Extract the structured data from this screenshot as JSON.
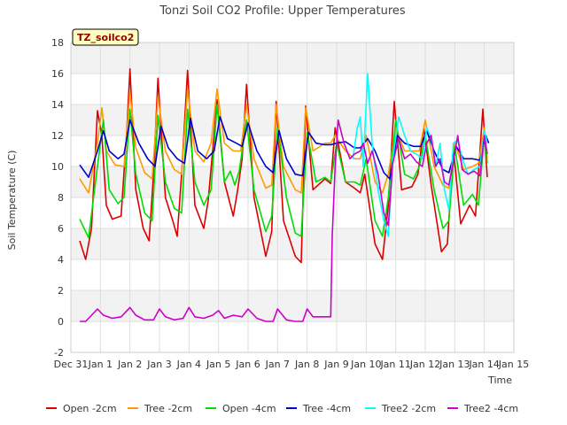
{
  "chart_data": {
    "type": "line",
    "title": "Tonzi Soil CO2 Profile: Upper Temperatures",
    "xlabel": "Time",
    "ylabel": "Soil Temperature (C)",
    "tag": "TZ_soilco2",
    "ylim": [
      -2,
      18
    ],
    "xlim": [
      0,
      15
    ],
    "yticks": [
      -2,
      0,
      2,
      4,
      6,
      8,
      10,
      12,
      14,
      16,
      18
    ],
    "xticks": [
      {
        "value": 0,
        "label": "Dec 31"
      },
      {
        "value": 1,
        "label": "Jan 1"
      },
      {
        "value": 2,
        "label": "Jan 2"
      },
      {
        "value": 3,
        "label": "Jan 3"
      },
      {
        "value": 4,
        "label": "Jan 4"
      },
      {
        "value": 5,
        "label": "Jan 5"
      },
      {
        "value": 6,
        "label": "Jan 6"
      },
      {
        "value": 7,
        "label": "Jan 7"
      },
      {
        "value": 8,
        "label": "Jan 8"
      },
      {
        "value": 9,
        "label": "Jan 9"
      },
      {
        "value": 10,
        "label": "Jan 10"
      },
      {
        "value": 11,
        "label": "Jan 11"
      },
      {
        "value": 12,
        "label": "Jan 12"
      },
      {
        "value": 13,
        "label": "Jan 13"
      },
      {
        "value": 14,
        "label": "Jan 14"
      },
      {
        "value": 15,
        "label": "Jan 15"
      }
    ],
    "grid": true,
    "legend_position": "bottom",
    "series": [
      {
        "name": "Open -2cm",
        "color": "#dd0000",
        "x": [
          0.3,
          0.5,
          0.7,
          0.9,
          1.05,
          1.2,
          1.4,
          1.7,
          1.9,
          2.0,
          2.2,
          2.45,
          2.65,
          2.8,
          2.95,
          3.2,
          3.45,
          3.6,
          3.75,
          3.95,
          4.2,
          4.5,
          4.65,
          4.8,
          4.95,
          5.2,
          5.5,
          5.65,
          5.8,
          5.95,
          6.2,
          6.6,
          6.8,
          6.95,
          7.2,
          7.6,
          7.8,
          7.95,
          8.2,
          8.6,
          8.8,
          8.95,
          9.3,
          9.6,
          9.8,
          9.95,
          10.3,
          10.55,
          10.75,
          10.95,
          11.2,
          11.55,
          11.75,
          11.95,
          12.2,
          12.55,
          12.75,
          12.95,
          13.2,
          13.5,
          13.7,
          13.95,
          14.1
        ],
        "y": [
          5.2,
          4.0,
          6.0,
          13.6,
          12.0,
          7.5,
          6.6,
          6.8,
          12.5,
          16.3,
          8.5,
          6.0,
          5.2,
          9.5,
          15.7,
          8.0,
          6.5,
          5.5,
          9.5,
          16.2,
          7.5,
          6.0,
          7.8,
          11.0,
          14.3,
          9.0,
          6.8,
          8.5,
          10.5,
          15.3,
          8.0,
          4.2,
          5.8,
          14.2,
          6.5,
          4.2,
          3.8,
          13.9,
          8.5,
          9.2,
          8.9,
          12.5,
          9.0,
          8.6,
          8.3,
          9.5,
          5.0,
          4.0,
          7.5,
          14.2,
          8.5,
          8.7,
          9.5,
          12.5,
          8.8,
          4.5,
          5.0,
          11.2,
          6.3,
          7.5,
          6.8,
          13.7,
          9.3
        ]
      },
      {
        "name": "Tree -2cm",
        "color": "#ff9900",
        "x": [
          0.3,
          0.6,
          0.9,
          1.05,
          1.2,
          1.5,
          1.8,
          2.0,
          2.2,
          2.5,
          2.75,
          2.95,
          3.2,
          3.5,
          3.75,
          3.95,
          4.2,
          4.5,
          4.75,
          4.95,
          5.2,
          5.5,
          5.75,
          5.95,
          6.2,
          6.6,
          6.8,
          6.95,
          7.2,
          7.6,
          7.8,
          7.95,
          8.2,
          8.6,
          8.8,
          8.95,
          9.3,
          9.6,
          9.8,
          10.0,
          10.3,
          10.55,
          10.75,
          11.0,
          11.3,
          11.6,
          11.8,
          12.0,
          12.3,
          12.6,
          12.8,
          13.0,
          13.3,
          13.6,
          13.8,
          14.0,
          14.1
        ],
        "y": [
          9.2,
          8.3,
          11.5,
          13.8,
          11.0,
          10.1,
          10.0,
          14.8,
          11.2,
          9.6,
          9.2,
          14.5,
          11.0,
          9.8,
          9.5,
          15.0,
          11.0,
          10.3,
          11.5,
          15.0,
          11.5,
          11.0,
          11.0,
          14.0,
          10.5,
          8.6,
          8.8,
          14.0,
          10.0,
          8.5,
          8.3,
          13.8,
          11.0,
          11.5,
          11.5,
          12.0,
          11.0,
          10.5,
          10.5,
          12.0,
          9.0,
          8.3,
          9.5,
          12.5,
          11.0,
          11.0,
          11.0,
          13.0,
          10.0,
          8.8,
          8.6,
          11.5,
          9.8,
          10.0,
          10.2,
          12.5,
          10.5
        ]
      },
      {
        "name": "Open -4cm",
        "color": "#00dd00",
        "x": [
          0.3,
          0.6,
          0.9,
          1.1,
          1.3,
          1.6,
          1.8,
          2.0,
          2.2,
          2.5,
          2.75,
          2.95,
          3.2,
          3.5,
          3.75,
          3.95,
          4.2,
          4.5,
          4.75,
          4.95,
          5.2,
          5.4,
          5.55,
          5.7,
          5.95,
          6.2,
          6.6,
          6.8,
          7.0,
          7.3,
          7.6,
          7.8,
          8.0,
          8.3,
          8.6,
          8.8,
          9.0,
          9.3,
          9.6,
          9.8,
          10.0,
          10.3,
          10.55,
          10.75,
          11.0,
          11.3,
          11.6,
          11.8,
          12.0,
          12.3,
          12.6,
          12.8,
          13.0,
          13.3,
          13.6,
          13.8,
          14.0,
          14.1
        ],
        "y": [
          6.6,
          5.4,
          10.0,
          13.0,
          8.5,
          7.6,
          8.0,
          13.7,
          9.5,
          7.0,
          6.5,
          13.3,
          9.0,
          7.3,
          7.0,
          13.7,
          9.0,
          7.5,
          8.5,
          14.0,
          9.0,
          9.7,
          8.8,
          9.7,
          13.0,
          8.5,
          5.8,
          6.8,
          12.5,
          8.0,
          5.7,
          5.5,
          12.2,
          9.0,
          9.3,
          9.0,
          11.5,
          9.0,
          9.0,
          8.8,
          10.5,
          6.5,
          5.5,
          8.0,
          13.0,
          9.5,
          9.2,
          10.0,
          12.0,
          8.5,
          6.0,
          6.5,
          11.3,
          7.5,
          8.2,
          7.5,
          12.0,
          10.2
        ]
      },
      {
        "name": "Tree -4cm",
        "color": "#0000cc",
        "x": [
          0.3,
          0.6,
          0.9,
          1.1,
          1.3,
          1.6,
          1.8,
          2.0,
          2.3,
          2.6,
          2.85,
          3.05,
          3.3,
          3.6,
          3.85,
          4.05,
          4.3,
          4.6,
          4.85,
          5.05,
          5.3,
          5.6,
          5.8,
          6.0,
          6.3,
          6.6,
          6.85,
          7.05,
          7.3,
          7.6,
          7.85,
          8.05,
          8.3,
          8.6,
          8.8,
          9.0,
          9.3,
          9.6,
          9.8,
          10.05,
          10.3,
          10.6,
          10.8,
          11.05,
          11.3,
          11.6,
          11.85,
          12.05,
          12.3,
          12.6,
          12.8,
          13.05,
          13.3,
          13.6,
          13.85,
          14.05,
          14.15
        ],
        "y": [
          10.1,
          9.3,
          11.0,
          12.3,
          11.0,
          10.5,
          10.8,
          13.0,
          11.5,
          10.5,
          10.0,
          12.6,
          11.2,
          10.5,
          10.2,
          13.1,
          11.0,
          10.5,
          11.0,
          13.2,
          11.8,
          11.5,
          11.3,
          12.8,
          11.0,
          10.0,
          9.6,
          12.3,
          10.5,
          9.5,
          9.4,
          12.2,
          11.5,
          11.4,
          11.4,
          11.5,
          11.6,
          11.2,
          11.2,
          11.8,
          11.0,
          9.6,
          9.2,
          12.0,
          11.5,
          11.3,
          11.3,
          12.3,
          11.0,
          9.8,
          9.6,
          11.3,
          10.5,
          10.5,
          10.4,
          12.0,
          11.5
        ]
      },
      {
        "name": "Tree2 -2cm",
        "color": "#00ffff",
        "x": [
          9.55,
          9.7,
          9.8,
          9.9,
          10.05,
          10.2,
          10.4,
          10.6,
          10.75,
          10.9,
          11.1,
          11.3,
          11.5,
          11.7,
          11.9,
          12.05,
          12.2,
          12.35,
          12.5,
          12.65,
          12.8,
          12.95,
          13.1,
          13.25,
          13.45,
          13.65,
          13.85,
          14.0,
          14.1
        ],
        "y": [
          10.5,
          12.5,
          13.2,
          10.0,
          16.0,
          11.5,
          8.5,
          6.5,
          5.5,
          10.5,
          13.2,
          12.0,
          11.0,
          10.8,
          10.5,
          12.5,
          11.8,
          10.0,
          11.5,
          8.5,
          7.2,
          11.5,
          11.7,
          10.5,
          9.5,
          9.8,
          10.0,
          12.3,
          11.5
        ]
      },
      {
        "name": "Tree2 -4cm",
        "color": "#cc00cc",
        "x": [
          0.3,
          0.5,
          0.9,
          1.1,
          1.4,
          1.7,
          2.0,
          2.2,
          2.5,
          2.8,
          3.0,
          3.2,
          3.5,
          3.8,
          4.0,
          4.2,
          4.5,
          4.8,
          5.0,
          5.2,
          5.5,
          5.8,
          6.0,
          6.3,
          6.6,
          6.85,
          7.0,
          7.3,
          7.6,
          7.85,
          8.0,
          8.2,
          8.5,
          8.8,
          8.85,
          8.95,
          9.05,
          9.25,
          9.45,
          9.6,
          9.8,
          9.9,
          10.05,
          10.2,
          10.4,
          10.6,
          10.75,
          10.9,
          11.1,
          11.3,
          11.5,
          11.7,
          11.9,
          12.05,
          12.2,
          12.35,
          12.5,
          12.65,
          12.8,
          12.95,
          13.1,
          13.25,
          13.45,
          13.65,
          13.85,
          14.0,
          14.1
        ],
        "y": [
          0.0,
          0.0,
          0.8,
          0.4,
          0.2,
          0.3,
          0.9,
          0.4,
          0.1,
          0.1,
          0.8,
          0.3,
          0.1,
          0.2,
          0.9,
          0.3,
          0.2,
          0.4,
          0.7,
          0.2,
          0.4,
          0.3,
          0.8,
          0.2,
          0.0,
          0.0,
          0.8,
          0.1,
          0.0,
          0.0,
          0.8,
          0.3,
          0.3,
          0.3,
          5.5,
          10.0,
          13.0,
          11.5,
          10.5,
          10.8,
          11.0,
          11.5,
          10.2,
          11.0,
          9.5,
          7.0,
          6.2,
          10.2,
          11.8,
          10.5,
          10.8,
          10.3,
          10.0,
          11.5,
          12.0,
          10.0,
          10.5,
          9.0,
          8.8,
          10.3,
          12.0,
          9.8,
          9.5,
          9.7,
          9.4,
          12.0,
          10.8
        ]
      }
    ]
  }
}
